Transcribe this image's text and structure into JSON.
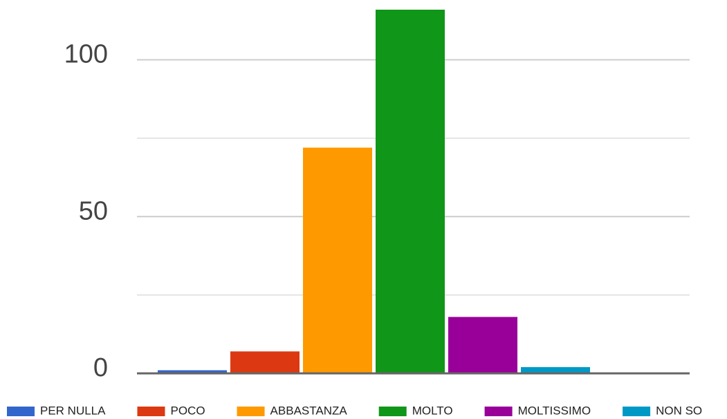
{
  "chart_data": {
    "type": "bar",
    "categories": [
      null
    ],
    "series": [
      {
        "name": "PER NULLA",
        "color": "#3366cc",
        "values": [
          1
        ]
      },
      {
        "name": "POCO",
        "color": "#dc3912",
        "values": [
          7
        ]
      },
      {
        "name": "ABBASTANZA",
        "color": "#ff9900",
        "values": [
          72
        ]
      },
      {
        "name": "MOLTO",
        "color": "#109618",
        "values": [
          116
        ]
      },
      {
        "name": "MOLTISSIMO",
        "color": "#990099",
        "values": [
          18
        ]
      },
      {
        "name": "NON SO",
        "color": "#0099c6",
        "values": [
          2
        ]
      }
    ],
    "ylim": [
      0,
      116
    ],
    "yticks": [
      0,
      50,
      100
    ],
    "minor_gridlines": [
      25,
      75
    ],
    "grid": true,
    "legend": "bottom"
  }
}
